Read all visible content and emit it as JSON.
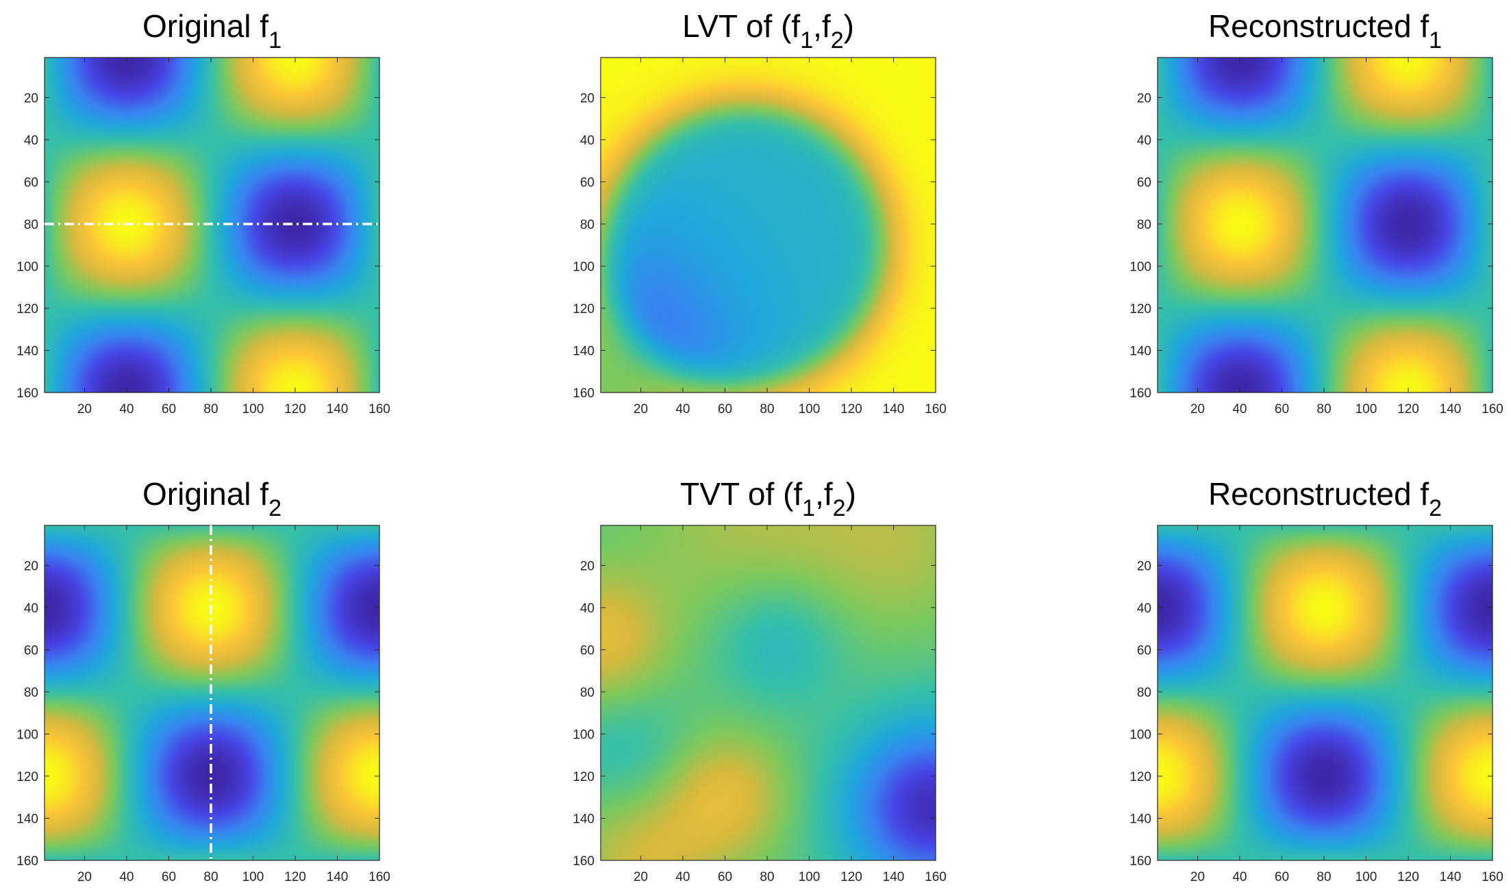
{
  "colors": {
    "colormap": [
      "#3e26a8",
      "#4744e3",
      "#3983f2",
      "#1fa8db",
      "#35bfaa",
      "#7ac95f",
      "#d5b93e",
      "#fcc538",
      "#f9fb15"
    ],
    "axis_frame": "#262626",
    "guide_line": "#ffffff"
  },
  "chart_data": [
    {
      "type": "heatmap",
      "panel": "original_f1",
      "title": "Original f",
      "title_sub": "1",
      "xlim": [
        1,
        160
      ],
      "ylim": [
        1,
        160
      ],
      "y_direction": "reversed",
      "xticks": [
        20,
        40,
        60,
        80,
        100,
        120,
        140,
        160
      ],
      "yticks": [
        20,
        40,
        60,
        80,
        100,
        120,
        140,
        160
      ],
      "field": "f1",
      "annotation": {
        "type": "dash-dot line",
        "orientation": "horizontal",
        "y": 80
      }
    },
    {
      "type": "heatmap",
      "panel": "lvt",
      "title": "LVT of (f",
      "title_parts": [
        "1",
        ",f",
        "2",
        ")"
      ],
      "xlim": [
        1,
        160
      ],
      "ylim": [
        1,
        160
      ],
      "y_direction": "reversed",
      "xticks": [
        20,
        40,
        60,
        80,
        100,
        120,
        140,
        160
      ],
      "yticks": [
        20,
        40,
        60,
        80,
        100,
        120,
        140,
        160
      ],
      "field": "lvt"
    },
    {
      "type": "heatmap",
      "panel": "reconstructed_f1",
      "title": "Reconstructed f",
      "title_sub": "1",
      "xlim": [
        1,
        160
      ],
      "ylim": [
        1,
        160
      ],
      "y_direction": "reversed",
      "xticks": [
        20,
        40,
        60,
        80,
        100,
        120,
        140,
        160
      ],
      "yticks": [
        20,
        40,
        60,
        80,
        100,
        120,
        140,
        160
      ],
      "field": "f1"
    },
    {
      "type": "heatmap",
      "panel": "original_f2",
      "title": "Original f",
      "title_sub": "2",
      "xlim": [
        1,
        160
      ],
      "ylim": [
        1,
        160
      ],
      "y_direction": "reversed",
      "xticks": [
        20,
        40,
        60,
        80,
        100,
        120,
        140,
        160
      ],
      "yticks": [
        20,
        40,
        60,
        80,
        100,
        120,
        140,
        160
      ],
      "field": "f2",
      "annotation": {
        "type": "dash-dot line",
        "orientation": "vertical",
        "x": 80
      }
    },
    {
      "type": "heatmap",
      "panel": "tvt",
      "title": "TVT of (f",
      "title_parts": [
        "1",
        ",f",
        "2",
        ")"
      ],
      "xlim": [
        1,
        160
      ],
      "ylim": [
        1,
        160
      ],
      "y_direction": "reversed",
      "xticks": [
        20,
        40,
        60,
        80,
        100,
        120,
        140,
        160
      ],
      "yticks": [
        20,
        40,
        60,
        80,
        100,
        120,
        140,
        160
      ],
      "field": "tvt"
    },
    {
      "type": "heatmap",
      "panel": "reconstructed_f2",
      "title": "Reconstructed f",
      "title_sub": "2",
      "xlim": [
        1,
        160
      ],
      "ylim": [
        1,
        160
      ],
      "y_direction": "reversed",
      "xticks": [
        20,
        40,
        60,
        80,
        100,
        120,
        140,
        160
      ],
      "yticks": [
        20,
        40,
        60,
        80,
        100,
        120,
        140,
        160
      ],
      "field": "f2"
    }
  ]
}
